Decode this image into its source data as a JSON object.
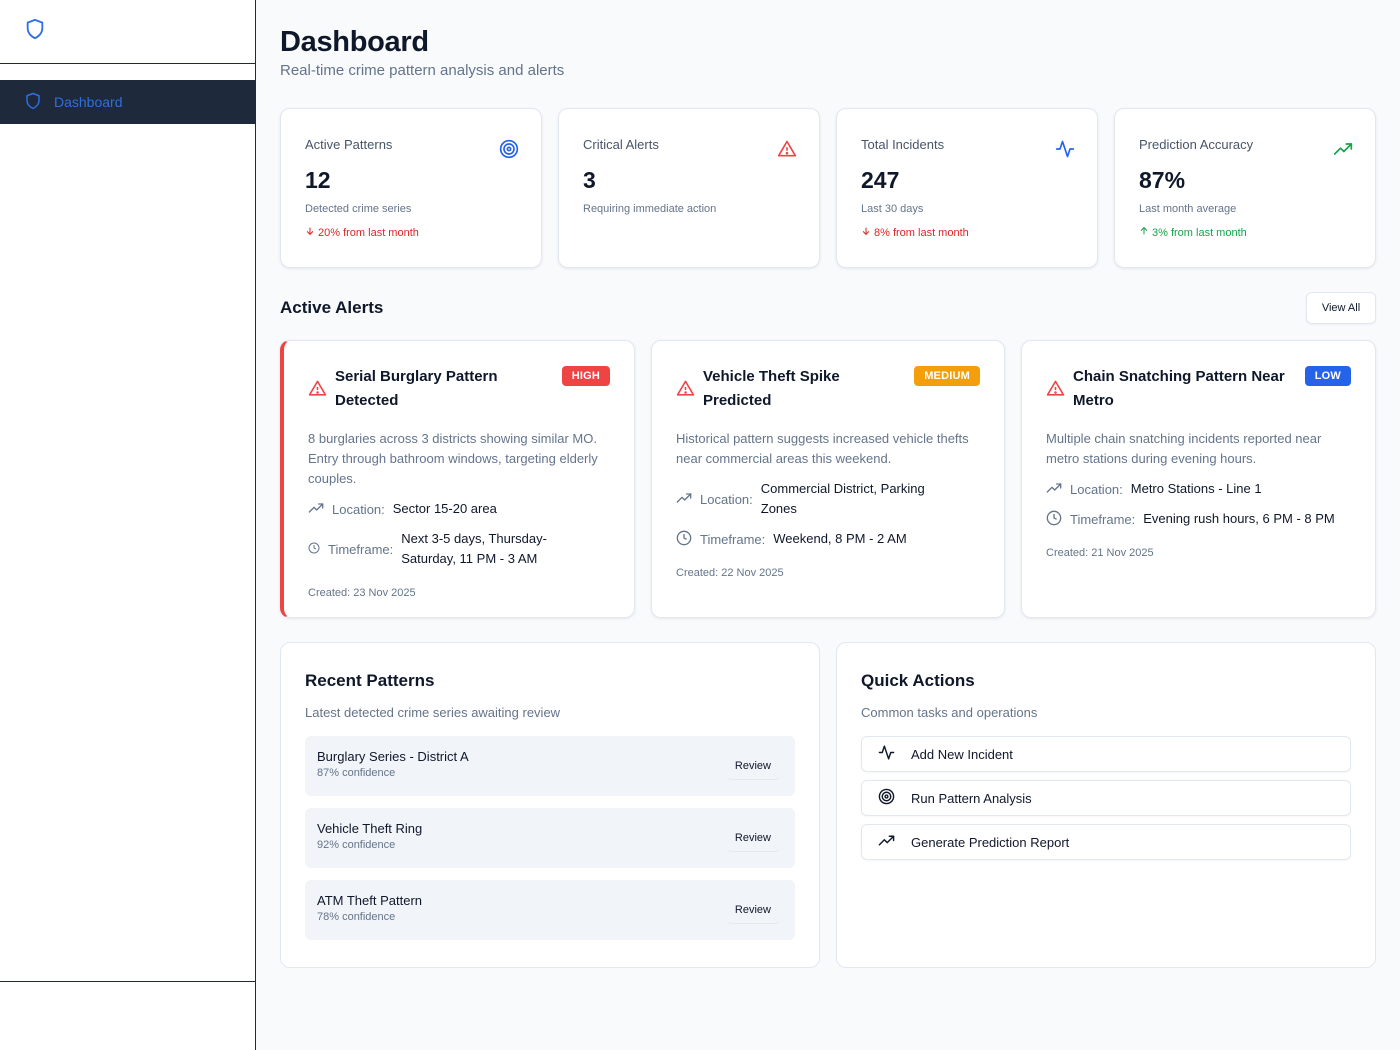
{
  "sidebar": {
    "logo_icon": "shield-icon",
    "nav": [
      {
        "label": "Dashboard",
        "icon": "shield-icon",
        "active": true
      }
    ]
  },
  "header": {
    "title": "Dashboard",
    "subtitle": "Real-time crime pattern analysis and alerts"
  },
  "stats": [
    {
      "label": "Active Patterns",
      "value": "12",
      "desc": "Detected crime series",
      "trend": "20% from last month",
      "trend_dir": "down",
      "icon": "target-icon",
      "icon_color": "#2563eb"
    },
    {
      "label": "Critical Alerts",
      "value": "3",
      "desc": "Requiring immediate action",
      "trend": "",
      "trend_dir": "",
      "icon": "warning-icon",
      "icon_color": "#ef4444"
    },
    {
      "label": "Total Incidents",
      "value": "247",
      "desc": "Last 30 days",
      "trend": "8% from last month",
      "trend_dir": "down",
      "icon": "activity-icon",
      "icon_color": "#2563eb"
    },
    {
      "label": "Prediction Accuracy",
      "value": "87%",
      "desc": "Last month average",
      "trend": "3% from last month",
      "trend_dir": "up",
      "icon": "trending-up-icon",
      "icon_color": "#16a34a"
    }
  ],
  "alerts_section": {
    "title": "Active Alerts",
    "view_all_label": "View All"
  },
  "alerts": [
    {
      "title": "Serial Burglary Pattern Detected",
      "severity": "HIGH",
      "description": "8 burglaries across 3 districts showing similar MO. Entry through bathroom windows, targeting elderly couples.",
      "location_label": "Location:",
      "location": "Sector 15-20 area",
      "timeframe_label": "Timeframe:",
      "timeframe": "Next 3-5 days, Thursday-Saturday, 11 PM - 3 AM",
      "created": "Created: 23 Nov 2025"
    },
    {
      "title": "Vehicle Theft Spike Predicted",
      "severity": "MEDIUM",
      "description": "Historical pattern suggests increased vehicle thefts near commercial areas this weekend.",
      "location_label": "Location:",
      "location": "Commercial District, Parking Zones",
      "timeframe_label": "Timeframe:",
      "timeframe": "Weekend, 8 PM - 2 AM",
      "created": "Created: 22 Nov 2025"
    },
    {
      "title": "Chain Snatching Pattern Near Metro",
      "severity": "LOW",
      "description": "Multiple chain snatching incidents reported near metro stations during evening hours.",
      "location_label": "Location:",
      "location": "Metro Stations - Line 1",
      "timeframe_label": "Timeframe:",
      "timeframe": "Evening rush hours, 6 PM - 8 PM",
      "created": "Created: 21 Nov 2025"
    }
  ],
  "recent_patterns": {
    "title": "Recent Patterns",
    "subtitle": "Latest detected crime series awaiting review",
    "review_label": "Review",
    "items": [
      {
        "name": "Burglary Series - District A",
        "confidence": "87% confidence"
      },
      {
        "name": "Vehicle Theft Ring",
        "confidence": "92% confidence"
      },
      {
        "name": "ATM Theft Pattern",
        "confidence": "78% confidence"
      }
    ]
  },
  "quick_actions": {
    "title": "Quick Actions",
    "subtitle": "Common tasks and operations",
    "items": [
      {
        "label": "Add New Incident",
        "icon": "activity-icon"
      },
      {
        "label": "Run Pattern Analysis",
        "icon": "target-icon"
      },
      {
        "label": "Generate Prediction Report",
        "icon": "trending-up-icon"
      }
    ]
  },
  "colors": {
    "accent": "#2563eb",
    "danger": "#ef4444",
    "warning": "#f59e0b",
    "success": "#16a34a",
    "sidebar_active_bg": "#1e293b"
  }
}
